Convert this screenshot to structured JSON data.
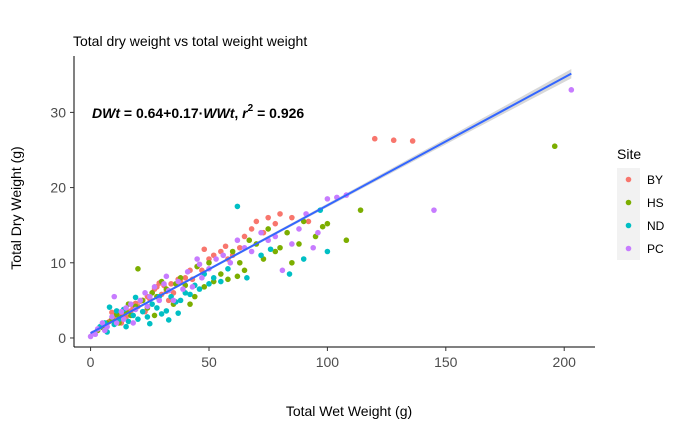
{
  "chart_data": {
    "type": "scatter",
    "title": "Total dry weight vs total weight weight",
    "xlabel": "Total Wet Weight (g)",
    "ylabel": "Total Dry Weight (g)",
    "xlim": [
      -7,
      213
    ],
    "ylim": [
      -1.2,
      37.5
    ],
    "xticks": [
      0,
      50,
      100,
      150,
      200
    ],
    "yticks": [
      0,
      10,
      20,
      30
    ],
    "grid": false,
    "legend_title": "Site",
    "legend_position": "right",
    "annotation": {
      "x": 0,
      "y": 30,
      "parts": {
        "lhs": "DWt",
        "eq": " = 0.64+0.17·",
        "var": "WWt",
        "sep": ",  ",
        "r": "r",
        "exp": "2",
        "val": " = 0.926"
      }
    },
    "fit": {
      "intercept": 0.64,
      "slope": 0.17,
      "x_range": [
        0,
        203
      ],
      "color": "#3366FF",
      "ribbon_color": "#BEBEBE"
    },
    "series": [
      {
        "name": "BY",
        "color": "#F8766D",
        "points": [
          [
            5,
            1.8
          ],
          [
            8,
            2.2
          ],
          [
            10,
            2.5
          ],
          [
            12,
            3.0
          ],
          [
            14,
            3.2
          ],
          [
            15,
            2.8
          ],
          [
            17,
            3.6
          ],
          [
            18,
            4.0
          ],
          [
            20,
            4.2
          ],
          [
            21,
            4.9
          ],
          [
            22,
            5.0
          ],
          [
            24,
            5.5
          ],
          [
            25,
            5.2
          ],
          [
            26,
            6.0
          ],
          [
            27,
            6.5
          ],
          [
            28,
            6.8
          ],
          [
            30,
            5.8
          ],
          [
            31,
            7.0
          ],
          [
            32,
            6.2
          ],
          [
            34,
            7.2
          ],
          [
            35,
            6.0
          ],
          [
            38,
            7.5
          ],
          [
            40,
            8.0
          ],
          [
            42,
            9.0
          ],
          [
            45,
            9.5
          ],
          [
            47,
            9.0
          ],
          [
            50,
            10.5
          ],
          [
            52,
            11.0
          ],
          [
            55,
            11.5
          ],
          [
            57,
            12.2
          ],
          [
            60,
            11.0
          ],
          [
            63,
            12.0
          ],
          [
            65,
            13.5
          ],
          [
            68,
            14.5
          ],
          [
            70,
            15.5
          ],
          [
            73,
            14.0
          ],
          [
            75,
            16.0
          ],
          [
            78,
            15.2
          ],
          [
            80,
            16.5
          ],
          [
            85,
            16.0
          ],
          [
            92,
            15.5
          ],
          [
            120,
            26.5
          ],
          [
            128,
            26.3
          ],
          [
            136,
            26.2
          ],
          [
            9,
            3.4
          ],
          [
            13,
            2.0
          ],
          [
            19,
            4.6
          ],
          [
            23,
            3.5
          ],
          [
            29,
            7.3
          ],
          [
            33,
            5.0
          ],
          [
            37,
            7.8
          ],
          [
            43,
            7.8
          ],
          [
            48,
            11.8
          ],
          [
            58,
            10.5
          ]
        ]
      },
      {
        "name": "HS",
        "color": "#7CAE00",
        "points": [
          [
            3,
            1.0
          ],
          [
            5,
            1.4
          ],
          [
            7,
            2.0
          ],
          [
            9,
            2.5
          ],
          [
            11,
            3.1
          ],
          [
            13,
            2.7
          ],
          [
            15,
            3.5
          ],
          [
            17,
            3.0
          ],
          [
            19,
            4.2
          ],
          [
            20,
            9.2
          ],
          [
            22,
            5.0
          ],
          [
            24,
            4.0
          ],
          [
            26,
            6.0
          ],
          [
            28,
            5.5
          ],
          [
            30,
            7.5
          ],
          [
            32,
            6.5
          ],
          [
            35,
            4.5
          ],
          [
            38,
            8.0
          ],
          [
            40,
            7.0
          ],
          [
            42,
            4.5
          ],
          [
            45,
            9.5
          ],
          [
            48,
            6.8
          ],
          [
            50,
            10.0
          ],
          [
            52,
            7.5
          ],
          [
            55,
            8.5
          ],
          [
            58,
            7.8
          ],
          [
            60,
            11.5
          ],
          [
            63,
            10.0
          ],
          [
            65,
            9.0
          ],
          [
            67,
            13.0
          ],
          [
            70,
            12.5
          ],
          [
            73,
            10.5
          ],
          [
            75,
            14.5
          ],
          [
            78,
            11.5
          ],
          [
            80,
            12.0
          ],
          [
            83,
            14.0
          ],
          [
            85,
            10.0
          ],
          [
            88,
            12.5
          ],
          [
            90,
            15.5
          ],
          [
            95,
            13.5
          ],
          [
            98,
            14.8
          ],
          [
            100,
            15.2
          ],
          [
            108,
            13.0
          ],
          [
            114,
            17.0
          ],
          [
            196,
            25.5
          ],
          [
            12,
            2.0
          ],
          [
            16,
            4.5
          ],
          [
            27,
            3.0
          ],
          [
            36,
            7.2
          ],
          [
            44,
            5.5
          ],
          [
            62,
            8.2
          ]
        ]
      },
      {
        "name": "ND",
        "color": "#00BFC4",
        "points": [
          [
            4,
            1.5
          ],
          [
            6,
            2.0
          ],
          [
            8,
            4.1
          ],
          [
            10,
            1.8
          ],
          [
            12,
            2.5
          ],
          [
            14,
            3.8
          ],
          [
            16,
            2.2
          ],
          [
            18,
            3.0
          ],
          [
            20,
            2.5
          ],
          [
            22,
            3.5
          ],
          [
            24,
            2.8
          ],
          [
            26,
            4.5
          ],
          [
            28,
            4.0
          ],
          [
            30,
            3.2
          ],
          [
            32,
            3.6
          ],
          [
            34,
            5.5
          ],
          [
            36,
            4.8
          ],
          [
            38,
            5.0
          ],
          [
            40,
            6.0
          ],
          [
            42,
            5.8
          ],
          [
            44,
            7.0
          ],
          [
            46,
            6.5
          ],
          [
            48,
            8.5
          ],
          [
            50,
            7.2
          ],
          [
            52,
            8.0
          ],
          [
            55,
            7.5
          ],
          [
            58,
            9.2
          ],
          [
            62,
            17.5
          ],
          [
            66,
            8.0
          ],
          [
            72,
            11.0
          ],
          [
            76,
            11.8
          ],
          [
            84,
            8.5
          ],
          [
            90,
            10.5
          ],
          [
            97,
            17.0
          ],
          [
            100,
            11.5
          ],
          [
            7,
            0.8
          ],
          [
            11,
            3.6
          ],
          [
            15,
            1.5
          ],
          [
            19,
            5.4
          ],
          [
            25,
            1.9
          ],
          [
            29,
            5.5
          ],
          [
            33,
            2.4
          ],
          [
            37,
            3.3
          ]
        ]
      },
      {
        "name": "PC",
        "color": "#C77CFF",
        "points": [
          [
            0,
            0.2
          ],
          [
            2,
            0.5
          ],
          [
            3,
            1.2
          ],
          [
            5,
            2.0
          ],
          [
            7,
            1.5
          ],
          [
            9,
            2.8
          ],
          [
            10,
            5.5
          ],
          [
            11,
            2.0
          ],
          [
            13,
            3.5
          ],
          [
            15,
            4.0
          ],
          [
            17,
            4.5
          ],
          [
            19,
            3.8
          ],
          [
            21,
            5.0
          ],
          [
            23,
            6.0
          ],
          [
            25,
            5.5
          ],
          [
            27,
            6.8
          ],
          [
            29,
            5.0
          ],
          [
            31,
            7.2
          ],
          [
            33,
            6.3
          ],
          [
            35,
            5.0
          ],
          [
            37,
            7.5
          ],
          [
            39,
            6.5
          ],
          [
            41,
            8.8
          ],
          [
            43,
            6.8
          ],
          [
            45,
            10.5
          ],
          [
            47,
            8.0
          ],
          [
            50,
            9.2
          ],
          [
            53,
            10.5
          ],
          [
            56,
            11.0
          ],
          [
            59,
            10.0
          ],
          [
            62,
            13.0
          ],
          [
            65,
            12.0
          ],
          [
            68,
            11.5
          ],
          [
            72,
            14.0
          ],
          [
            75,
            13.0
          ],
          [
            78,
            13.5
          ],
          [
            81,
            9.0
          ],
          [
            85,
            12.5
          ],
          [
            88,
            14.5
          ],
          [
            91,
            16.5
          ],
          [
            94,
            12.0
          ],
          [
            96,
            14.0
          ],
          [
            100,
            18.5
          ],
          [
            104,
            18.7
          ],
          [
            108,
            19.0
          ],
          [
            145,
            17.0
          ],
          [
            203,
            33.0
          ],
          [
            1,
            0.6
          ],
          [
            6,
            1.0
          ],
          [
            14,
            2.5
          ],
          [
            18,
            2.0
          ],
          [
            24,
            4.2
          ],
          [
            32,
            8.2
          ],
          [
            46,
            9.8
          ]
        ]
      }
    ]
  }
}
